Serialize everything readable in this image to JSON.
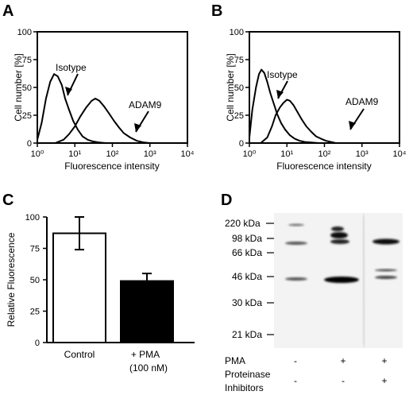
{
  "chart_data": [
    {
      "panel": "A",
      "type": "line",
      "xlabel": "Fluorescence intensity",
      "ylabel": "Cell number [%]",
      "x_ticks": [
        "10⁰",
        "10¹",
        "10²",
        "10³",
        "10⁴"
      ],
      "y_ticks": [
        "0",
        "25",
        "50",
        "75",
        "100"
      ],
      "xscale": "log",
      "xlim": [
        1,
        10000
      ],
      "ylim": [
        0,
        100
      ],
      "series": [
        {
          "name": "Isotype",
          "x": [
            1,
            1.3,
            1.7,
            2.2,
            2.8,
            3.5,
            4.5,
            5.5,
            7,
            9,
            12,
            16,
            22,
            30,
            45,
            70,
            100
          ],
          "y": [
            3,
            18,
            40,
            55,
            62,
            60,
            52,
            40,
            30,
            20,
            12,
            6,
            3,
            1.5,
            0.5,
            0,
            0
          ]
        },
        {
          "name": "ADAM9",
          "x": [
            3,
            5,
            7,
            10,
            14,
            20,
            28,
            35,
            45,
            60,
            80,
            110,
            150,
            200,
            300,
            450,
            700,
            1000
          ],
          "y": [
            0,
            3,
            8,
            15,
            24,
            32,
            38,
            40,
            38,
            33,
            27,
            20,
            14,
            9,
            5,
            2,
            0.5,
            0
          ]
        }
      ],
      "annotations": [
        "Isotype",
        "ADAM9"
      ]
    },
    {
      "panel": "B",
      "type": "line",
      "xlabel": "Fluorescence intensity",
      "ylabel": "Cell number [%]",
      "x_ticks": [
        "10⁰",
        "10¹",
        "10²",
        "10³",
        "10⁴"
      ],
      "y_ticks": [
        "0",
        "25",
        "50",
        "75",
        "100"
      ],
      "xscale": "log",
      "xlim": [
        1,
        10000
      ],
      "ylim": [
        0,
        100
      ],
      "series": [
        {
          "name": "Isotype",
          "x": [
            1,
            1.2,
            1.5,
            1.8,
            2.1,
            2.5,
            3,
            3.6,
            4.5,
            5.5,
            7,
            9,
            12,
            16,
            22,
            30,
            45,
            70
          ],
          "y": [
            5,
            30,
            50,
            62,
            66,
            63,
            55,
            45,
            35,
            26,
            18,
            12,
            7,
            4,
            2,
            1,
            0.5,
            0
          ]
        },
        {
          "name": "ADAM9",
          "x": [
            2,
            3,
            4,
            5,
            6.5,
            8,
            10,
            12,
            15,
            19,
            25,
            33,
            45,
            60,
            80,
            110,
            150,
            200
          ],
          "y": [
            0,
            5,
            15,
            25,
            32,
            36,
            39,
            38,
            34,
            28,
            21,
            15,
            10,
            6,
            4,
            2,
            1,
            0
          ]
        }
      ],
      "annotations": [
        "Isotype",
        "ADAM9"
      ]
    },
    {
      "panel": "C",
      "type": "bar",
      "categories": [
        "Control",
        "+ PMA"
      ],
      "category_sublabels": [
        "",
        "(100 nM)"
      ],
      "values": [
        87,
        49
      ],
      "errors": [
        13,
        6
      ],
      "bar_colors": [
        "#ffffff",
        "#000000"
      ],
      "ylabel": "Relative Fluorescence",
      "y_ticks": [
        "0",
        "25",
        "50",
        "75",
        "100"
      ],
      "ylim": [
        0,
        100
      ]
    }
  ],
  "panels": {
    "a_letter": "A",
    "b_letter": "B",
    "c_letter": "C",
    "d_letter": "D",
    "a_isotype": "Isotype",
    "a_adam9": "ADAM9",
    "b_isotype": "Isotype",
    "b_adam9": "ADAM9"
  },
  "blot": {
    "markers": [
      "220 kDa",
      "98 kDa",
      "66 kDa",
      "46 kDa",
      "30 kDa",
      "21 kDa"
    ],
    "row1_label": "PMA",
    "row1_values": [
      "-",
      "+",
      "+"
    ],
    "row2_label": "Proteinase",
    "row2_label_line2": "Inhibitors",
    "row2_values": [
      "-",
      "-",
      "+"
    ]
  }
}
